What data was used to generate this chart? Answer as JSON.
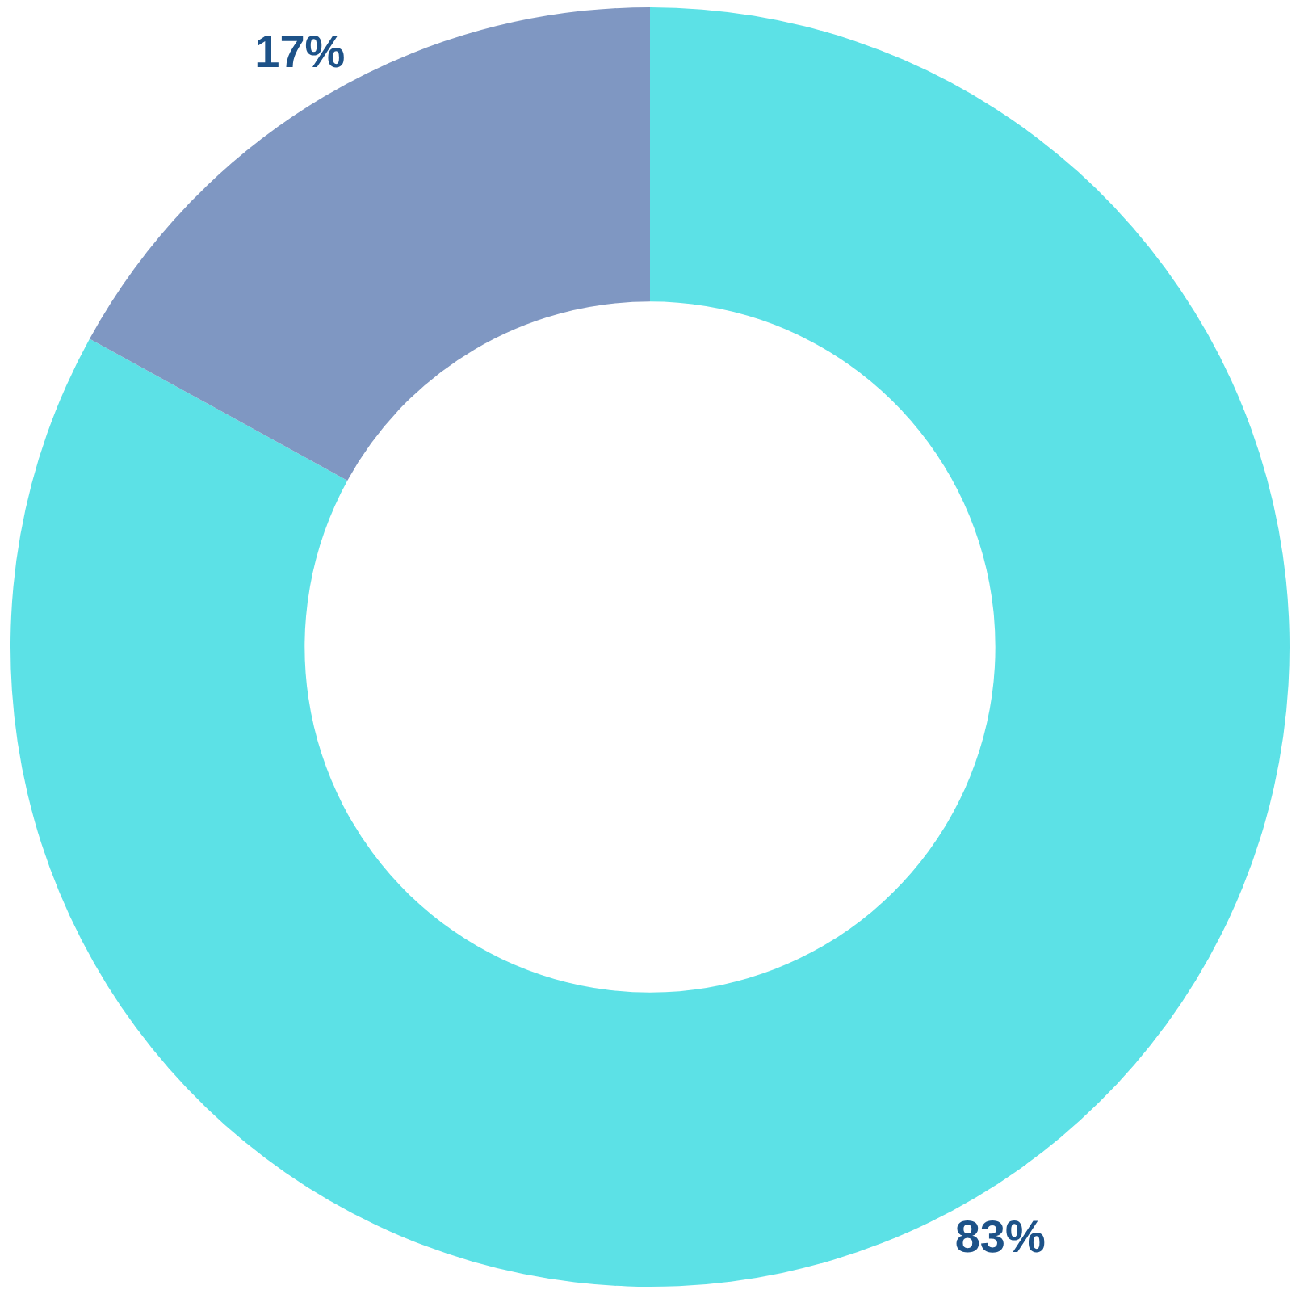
{
  "chart_data": {
    "type": "donut",
    "categories": [
      null,
      null
    ],
    "values": [
      83,
      17
    ],
    "colors": [
      "#5ce1e6",
      "#7f97c2"
    ],
    "value_labels": [
      "83%",
      "17%"
    ],
    "legend": false
  }
}
